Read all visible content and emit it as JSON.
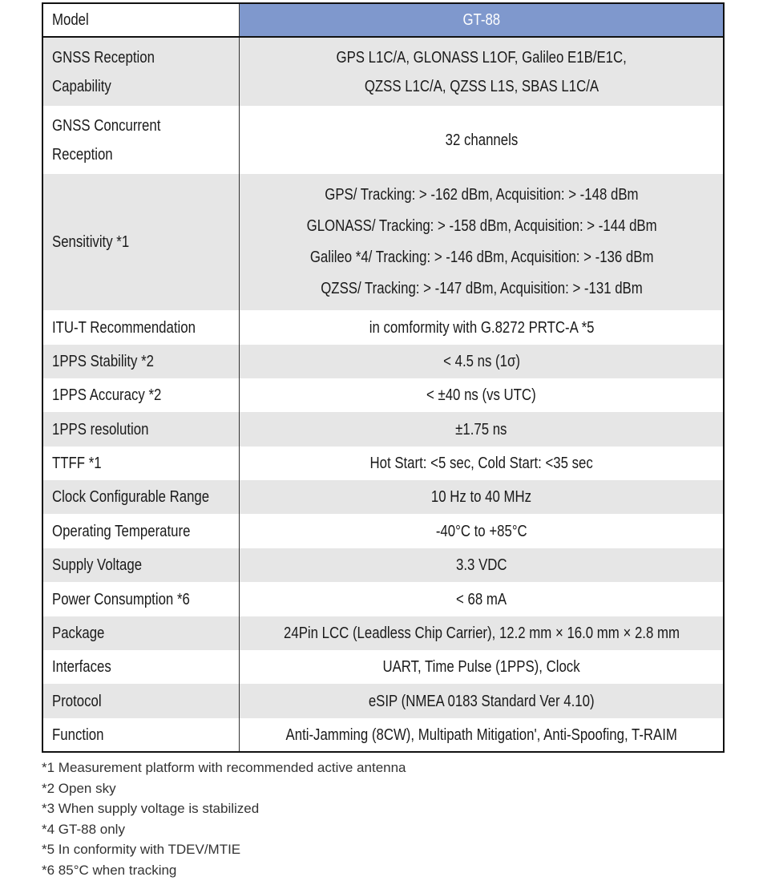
{
  "table": {
    "header": {
      "label": "Model",
      "value": "GT-88",
      "color": "#7f98cd"
    },
    "rows": [
      {
        "label": [
          "GNSS Reception",
          "Capability"
        ],
        "value": [
          "GPS L1C/A, GLONASS L1OF, Galileo E1B/E1C,",
          "QZSS L1C/A, QZSS L1S, SBAS L1C/A"
        ]
      },
      {
        "label": [
          "GNSS Concurrent",
          "Reception"
        ],
        "value": [
          "32 channels"
        ]
      },
      {
        "label": [
          "Sensitivity  *1"
        ],
        "value": [
          "GPS/ Tracking: > -162 dBm, Acquisition: > -148 dBm",
          "GLONASS/ Tracking: > -158 dBm, Acquisition: > -144 dBm",
          "Galileo *4/ Tracking: > -146 dBm, Acquisition: > -136 dBm",
          "QZSS/ Tracking: > -147 dBm, Acquisition: > -131 dBm"
        ]
      },
      {
        "label": [
          "ITU-T Recommendation"
        ],
        "value": [
          "in comformity with G.8272 PRTC-A *5"
        ]
      },
      {
        "label": [
          "1PPS Stability *2"
        ],
        "value": [
          "< 4.5 ns (1σ)"
        ]
      },
      {
        "label": [
          "1PPS Accuracy *2"
        ],
        "value": [
          "< ±40 ns (vs UTC)"
        ]
      },
      {
        "label": [
          "1PPS resolution"
        ],
        "value": [
          "±1.75 ns"
        ]
      },
      {
        "label": [
          "TTFF *1"
        ],
        "value": [
          "Hot Start: <5 sec, Cold Start: <35 sec"
        ]
      },
      {
        "label": [
          "Clock Configurable Range"
        ],
        "value": [
          "10 Hz to 40 MHz"
        ]
      },
      {
        "label": [
          "Operating Temperature"
        ],
        "value": [
          "-40°C to +85°C"
        ]
      },
      {
        "label": [
          "Supply Voltage"
        ],
        "value": [
          "3.3 VDC"
        ]
      },
      {
        "label": [
          "Power Consumption *6"
        ],
        "value": [
          "< 68 mA"
        ]
      },
      {
        "label": [
          "Package"
        ],
        "value": [
          "24Pin LCC (Leadless Chip Carrier), 12.2 mm × 16.0 mm × 2.8 mm"
        ]
      },
      {
        "label": [
          "Interfaces"
        ],
        "value": [
          "UART, Time Pulse (1PPS), Clock"
        ]
      },
      {
        "label": [
          "Protocol"
        ],
        "value": [
          "eSIP (NMEA 0183 Standard Ver 4.10)"
        ]
      },
      {
        "label": [
          "Function"
        ],
        "value": [
          "Anti-Jamming (8CW), Multipath Mitigation', Anti-Spoofing, T-RAIM"
        ]
      }
    ]
  },
  "footnotes": [
    "*1 Measurement platform with recommended active antenna",
    "*2 Open sky",
    "*3 When supply voltage is stabilized",
    "*4 GT-88 only",
    "*5 In conformity with TDEV/MTIE",
    "*6 85°C when tracking"
  ]
}
